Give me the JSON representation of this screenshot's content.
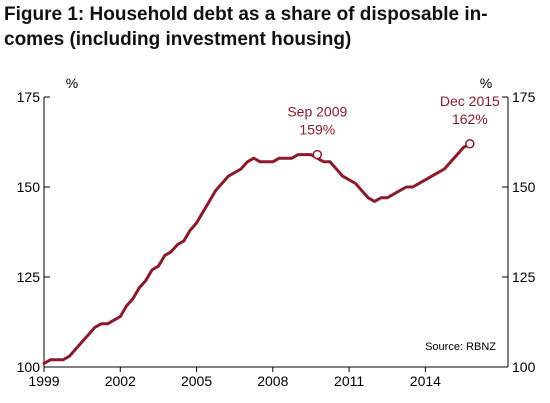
{
  "chart_data": {
    "type": "line",
    "title_line1": "Figure 1: Household debt as a share of disposable in-",
    "title_line2": "comes (including investment housing)",
    "ylabel_left": "%",
    "ylabel_right": "%",
    "ylim": [
      100,
      175
    ],
    "yticks": [
      100,
      125,
      150,
      175
    ],
    "xlim": [
      1999,
      2017.25
    ],
    "xticks": [
      1999,
      2002,
      2005,
      2008,
      2011,
      2014
    ],
    "grid": false,
    "source": "Source: RBNZ",
    "line_color": "#8b1a2b",
    "series": [
      {
        "x": [
          1999.0,
          1999.25,
          1999.5,
          1999.75,
          2000.0,
          2000.25,
          2000.5,
          2000.75,
          2001.0,
          2001.25,
          2001.5,
          2001.75,
          2002.0,
          2002.25,
          2002.5,
          2002.75,
          2003.0,
          2003.25,
          2003.5,
          2003.75,
          2004.0,
          2004.25,
          2004.5,
          2004.75,
          2005.0,
          2005.25,
          2005.5,
          2005.75,
          2006.0,
          2006.25,
          2006.5,
          2006.75,
          2007.0,
          2007.25,
          2007.5,
          2007.75,
          2008.0,
          2008.25,
          2008.5,
          2008.75,
          2009.0,
          2009.25,
          2009.5,
          2009.75,
          2010.0,
          2010.25,
          2010.5,
          2010.75,
          2011.0,
          2011.25,
          2011.5,
          2011.75,
          2012.0,
          2012.25,
          2012.5,
          2012.75,
          2013.0,
          2013.25,
          2013.5,
          2013.75,
          2014.0,
          2014.25,
          2014.5,
          2014.75,
          2015.0,
          2015.25,
          2015.5,
          2015.75
        ],
        "values": [
          101,
          102,
          102,
          102,
          103,
          105,
          107,
          109,
          111,
          112,
          112,
          113,
          114,
          117,
          119,
          122,
          124,
          127,
          128,
          131,
          132,
          134,
          135,
          138,
          140,
          143,
          146,
          149,
          151,
          153,
          154,
          155,
          157,
          158,
          157,
          157,
          157,
          158,
          158,
          158,
          159,
          159,
          159,
          158,
          157,
          157,
          155,
          153,
          152,
          151,
          149,
          147,
          146,
          147,
          147,
          148,
          149,
          150,
          150,
          151,
          152,
          153,
          154,
          155,
          157,
          159,
          161,
          162
        ]
      }
    ],
    "annotations": [
      {
        "line1": "Sep 2009",
        "line2": "159%",
        "x": 2009.75,
        "y": 159
      },
      {
        "line1": "Dec 2015",
        "line2": "162%",
        "x": 2015.75,
        "y": 162
      }
    ]
  }
}
